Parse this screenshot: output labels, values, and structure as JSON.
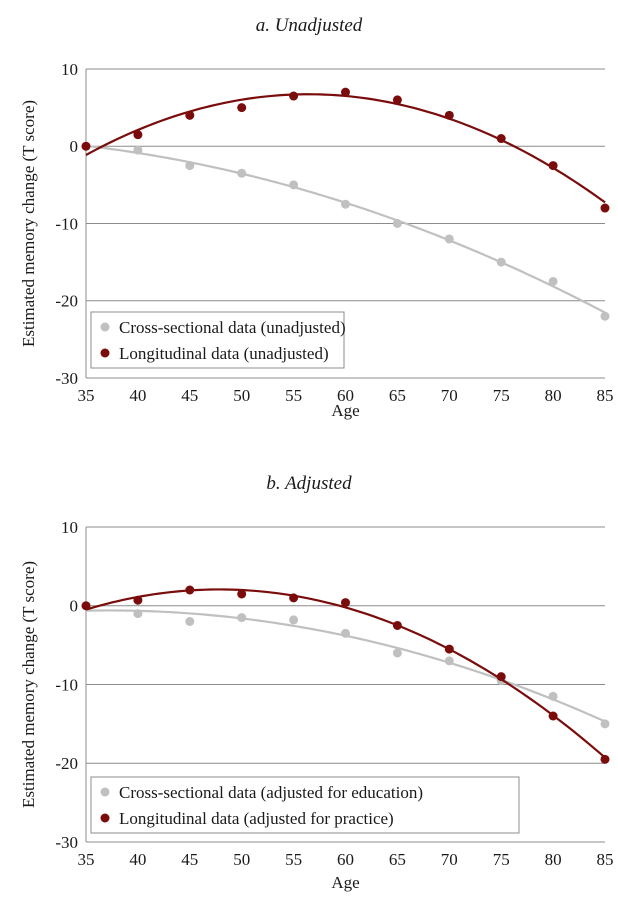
{
  "chart_data": [
    {
      "type": "scatter",
      "title": "a. Unadjusted",
      "xlabel": "Age",
      "ylabel": "Estimated memory change (T score)",
      "xlim": [
        35,
        85
      ],
      "ylim": [
        -30,
        10
      ],
      "xticks": [
        35,
        40,
        45,
        50,
        55,
        60,
        65,
        70,
        75,
        80,
        85
      ],
      "yticks": [
        10,
        0,
        -10,
        -20,
        -30
      ],
      "grid": true,
      "legend": "bottom-left",
      "series": [
        {
          "name": "Cross-sectional data (unadjusted)",
          "color": "#c0c0c0",
          "x": [
            35,
            40,
            45,
            50,
            55,
            60,
            65,
            70,
            75,
            80,
            85
          ],
          "y": [
            0,
            -0.5,
            -2.5,
            -3.5,
            -5,
            -7.5,
            -10,
            -12,
            -15,
            -17.5,
            -22
          ],
          "trend": "quadratic"
        },
        {
          "name": "Longitudinal data (unadjusted)",
          "color": "#7a0c0c",
          "x": [
            35,
            40,
            45,
            50,
            55,
            60,
            65,
            70,
            75,
            80,
            85
          ],
          "y": [
            0,
            1.5,
            4,
            5,
            6.5,
            7,
            6,
            4,
            1,
            -2.5,
            -8
          ],
          "trend": "quadratic"
        }
      ]
    },
    {
      "type": "scatter",
      "title": "b. Adjusted",
      "xlabel": "Age",
      "ylabel": "Estimated memory change (T score)",
      "xlim": [
        35,
        85
      ],
      "ylim": [
        -30,
        10
      ],
      "xticks": [
        35,
        40,
        45,
        50,
        55,
        60,
        65,
        70,
        75,
        80,
        85
      ],
      "yticks": [
        10,
        0,
        -10,
        -20,
        -30
      ],
      "grid": true,
      "legend": "bottom-left",
      "series": [
        {
          "name": "Cross-sectional data (adjusted for education)",
          "color": "#c0c0c0",
          "x": [
            35,
            40,
            45,
            50,
            55,
            60,
            65,
            70,
            75,
            80,
            85
          ],
          "y": [
            0,
            -1,
            -2,
            -1.5,
            -1.8,
            -3.5,
            -6,
            -7,
            -9.5,
            -11.5,
            -15
          ],
          "trend": "quadratic"
        },
        {
          "name": "Longitudinal data (adjusted for practice)",
          "color": "#7a0c0c",
          "x": [
            35,
            40,
            45,
            50,
            55,
            60,
            65,
            70,
            75,
            80,
            85
          ],
          "y": [
            0,
            0.7,
            2,
            1.5,
            1,
            0.4,
            -2.5,
            -5.5,
            -9,
            -14,
            -19.5
          ],
          "trend": "quadratic"
        }
      ]
    }
  ]
}
